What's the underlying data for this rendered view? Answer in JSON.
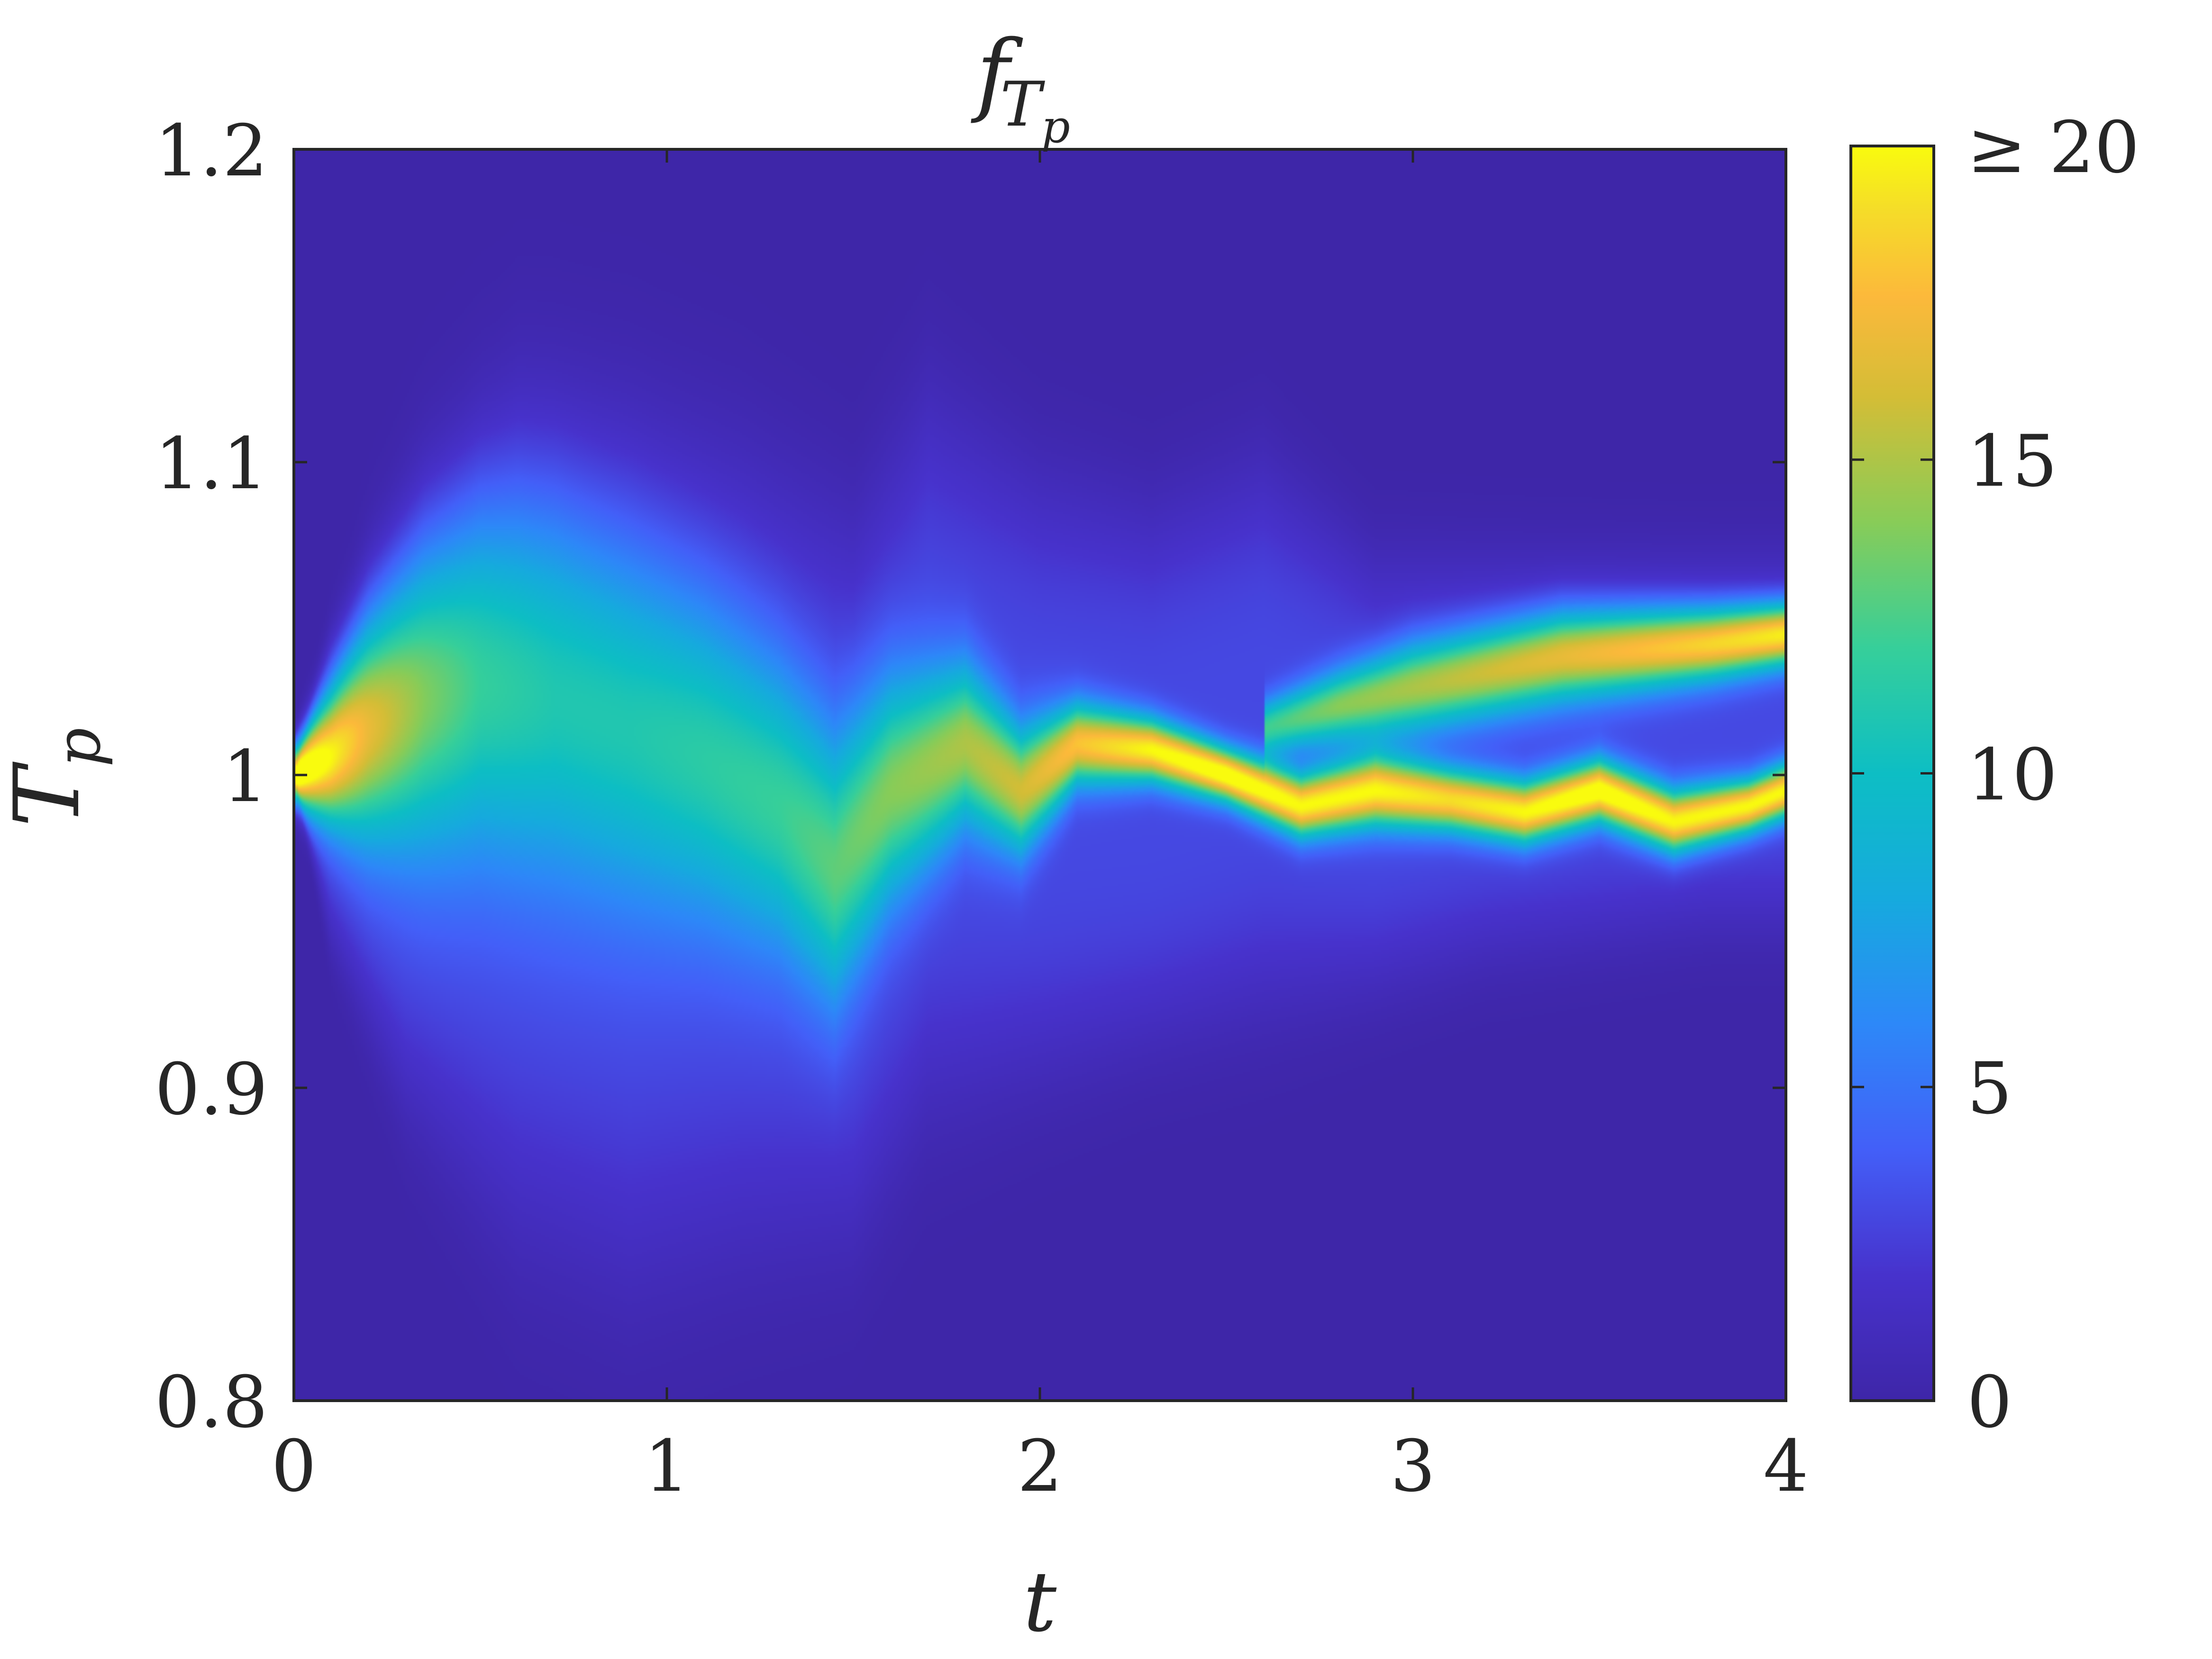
{
  "chart_data": {
    "type": "heatmap",
    "title": {
      "main": "f",
      "subscript": "T",
      "subsubscript": "p"
    },
    "xlabel": "t",
    "ylabel": {
      "main": "T",
      "subscript": "p"
    },
    "xlim": [
      0,
      4
    ],
    "ylim": [
      0.8,
      1.2
    ],
    "x_ticks": [
      0,
      1,
      2,
      3,
      4
    ],
    "x_tick_labels": [
      "0",
      "1",
      "2",
      "3",
      "4"
    ],
    "y_ticks": [
      0.8,
      0.9,
      1.0,
      1.1,
      1.2
    ],
    "y_tick_labels": [
      "0.8",
      "0.9",
      "1",
      "1.1",
      "1.2"
    ],
    "colorbar": {
      "range": [
        0,
        20
      ],
      "ticks": [
        0,
        5,
        10,
        15,
        20
      ],
      "tick_labels": [
        "0",
        "5",
        "10",
        "15",
        "≥ 20"
      ],
      "colormap": "parula"
    },
    "grid": false,
    "series": [
      {
        "name": "",
        "t": [
          0,
          0.1,
          0.2,
          0.35,
          0.5,
          0.7,
          0.9,
          1.1,
          1.3,
          1.45,
          1.6,
          1.8,
          1.95,
          2.1,
          2.3,
          2.5,
          2.7,
          2.9,
          3.1,
          3.3,
          3.5,
          3.7,
          3.9,
          4.0
        ],
        "center": [
          1.0,
          1.006,
          1.015,
          1.025,
          1.03,
          1.025,
          1.015,
          1.005,
          0.99,
          0.97,
          0.995,
          1.01,
          0.995,
          1.01,
          1.008,
          1.0,
          0.99,
          0.995,
          0.992,
          0.988,
          0.995,
          0.985,
          0.99,
          0.995
        ],
        "spread": [
          0.006,
          0.015,
          0.025,
          0.035,
          0.04,
          0.042,
          0.04,
          0.036,
          0.032,
          0.03,
          0.025,
          0.018,
          0.014,
          0.009,
          0.007,
          0.006,
          0.007,
          0.008,
          0.007,
          0.007,
          0.007,
          0.007,
          0.006,
          0.006
        ],
        "peak": [
          20,
          17,
          14,
          11,
          9,
          8,
          8,
          8.5,
          9,
          10,
          11,
          12,
          13,
          15,
          17,
          18,
          17,
          17,
          16,
          17,
          18,
          17,
          17,
          17
        ]
      },
      {
        "name": "",
        "t": [
          2.6,
          2.8,
          3.0,
          3.2,
          3.4,
          3.6,
          3.8,
          4.0
        ],
        "center": [
          1.015,
          1.022,
          1.028,
          1.033,
          1.038,
          1.04,
          1.042,
          1.045
        ],
        "spread": [
          0.006,
          0.008,
          0.01,
          0.01,
          0.01,
          0.009,
          0.008,
          0.007
        ],
        "peak": [
          9,
          11,
          12,
          13,
          14,
          15,
          16,
          17
        ]
      }
    ],
    "background_halo": {
      "t": [
        0,
        0.1,
        0.3,
        0.6,
        0.9,
        1.2,
        1.5,
        1.7,
        2.0,
        2.3,
        2.6,
        2.9,
        3.2,
        3.5,
        3.8,
        4.0
      ],
      "upper": [
        1.0,
        1.04,
        1.065,
        1.11,
        1.105,
        1.095,
        1.075,
        1.115,
        1.09,
        1.08,
        1.095,
        1.065,
        1.065,
        1.065,
        1.065,
        1.065
      ],
      "lower": [
        1.0,
        0.95,
        0.9,
        0.86,
        0.845,
        0.855,
        0.86,
        0.9,
        0.91,
        0.92,
        0.93,
        0.935,
        0.945,
        0.95,
        0.955,
        0.955
      ],
      "level": 3
    }
  }
}
